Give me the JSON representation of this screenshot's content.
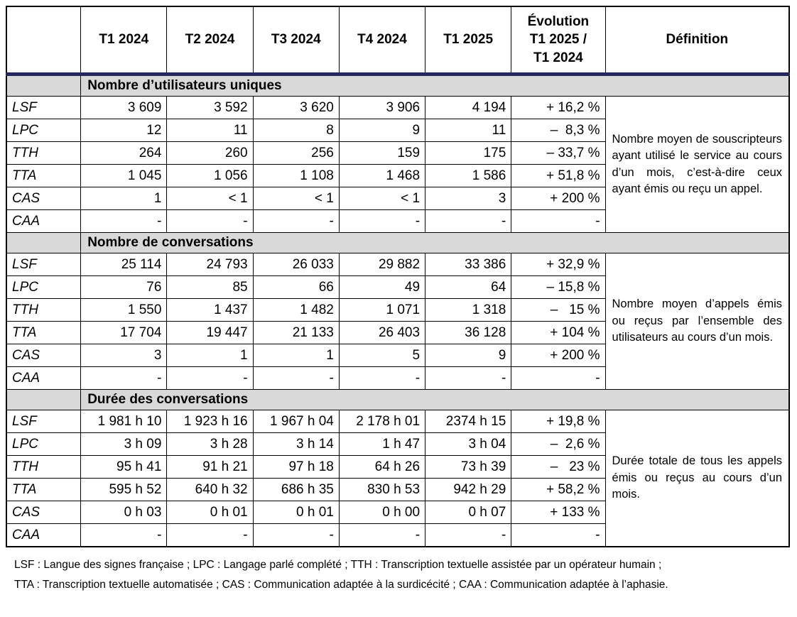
{
  "colors": {
    "separator_navy": "#26265e",
    "band_gray": "#d9d9d9",
    "border_black": "#000000"
  },
  "header": {
    "cols": [
      "",
      "T1 2024",
      "T2 2024",
      "T3 2024",
      "T4 2024",
      "T1 2025",
      "Évolution\nT1 2025 /\nT1 2024",
      "Définition"
    ]
  },
  "sections": [
    {
      "title": "Nombre d’utilisateurs uniques",
      "definition": "Nombre moyen de souscripteurs ayant utilisé le service au cours d’un mois, c’est-à-dire ceux ayant émis ou reçu un appel.",
      "rows": [
        {
          "label": "LSF",
          "values": [
            "3 609",
            "3 592",
            "3 620",
            "3 906",
            "4 194"
          ],
          "evolution": "+ 16,2 %"
        },
        {
          "label": "LPC",
          "values": [
            "12",
            "11",
            "8",
            "9",
            "11"
          ],
          "evolution": "–  8,3 %"
        },
        {
          "label": "TTH",
          "values": [
            "264",
            "260",
            "256",
            "159",
            "175"
          ],
          "evolution": "– 33,7 %"
        },
        {
          "label": "TTA",
          "values": [
            "1 045",
            "1 056",
            "1 108",
            "1 468",
            "1 586"
          ],
          "evolution": "+ 51,8 %"
        },
        {
          "label": "CAS",
          "values": [
            "1",
            "< 1",
            "< 1",
            "< 1",
            "3"
          ],
          "evolution": "+ 200 %"
        },
        {
          "label": "CAA",
          "values": [
            "-",
            "-",
            "-",
            "-",
            "-"
          ],
          "evolution": "-"
        }
      ]
    },
    {
      "title": "Nombre de conversations",
      "definition": "Nombre moyen d’appels émis ou reçus par l’ensemble des utilisateurs au cours d’un mois.",
      "rows": [
        {
          "label": "LSF",
          "values": [
            "25 114",
            "24 793",
            "26 033",
            "29 882",
            "33 386"
          ],
          "evolution": "+ 32,9 %"
        },
        {
          "label": "LPC",
          "values": [
            "76",
            "85",
            "66",
            "49",
            "64"
          ],
          "evolution": "– 15,8 %"
        },
        {
          "label": "TTH",
          "values": [
            "1 550",
            "1 437",
            "1 482",
            "1 071",
            "1 318"
          ],
          "evolution": "–   15 %"
        },
        {
          "label": "TTA",
          "values": [
            "17 704",
            "19 447",
            "21 133",
            "26 403",
            "36 128"
          ],
          "evolution": "+ 104 %"
        },
        {
          "label": "CAS",
          "values": [
            "3",
            "1",
            "1",
            "5",
            "9"
          ],
          "evolution": "+ 200 %"
        },
        {
          "label": "CAA",
          "values": [
            "-",
            "-",
            "-",
            "-",
            "-"
          ],
          "evolution": "-"
        }
      ]
    },
    {
      "title": "Durée des conversations",
      "definition": "Durée totale de tous les appels émis ou reçus au cours d’un mois.",
      "rows": [
        {
          "label": "LSF",
          "values": [
            "1 981 h 10",
            "1 923 h 16",
            "1 967 h 04",
            "2 178 h 01",
            "2374 h 15"
          ],
          "evolution": "+ 19,8 %"
        },
        {
          "label": "LPC",
          "values": [
            "3 h 09",
            "3 h 28",
            "3 h 14",
            "1 h 47",
            "3 h 04"
          ],
          "evolution": "–  2,6 %"
        },
        {
          "label": "TTH",
          "values": [
            "95 h 41",
            "91 h 21",
            "97 h 18",
            "64 h 26",
            "73 h 39"
          ],
          "evolution": "–   23 %"
        },
        {
          "label": "TTA",
          "values": [
            "595 h 52",
            "640 h 32",
            "686 h 35",
            "830 h 53",
            "942 h 29"
          ],
          "evolution": "+ 58,2 %"
        },
        {
          "label": "CAS",
          "values": [
            "0 h 03",
            "0 h 01",
            "0 h 01",
            "0 h 00",
            "0 h 07"
          ],
          "evolution": "+ 133 %"
        },
        {
          "label": "CAA",
          "values": [
            "-",
            "-",
            "-",
            "-",
            "-"
          ],
          "evolution": "-"
        }
      ]
    }
  ],
  "footnote": {
    "line1": "LSF : Langue des signes française ; LPC : Langage parlé complété ; TTH : Transcription textuelle assistée par un opérateur humain ;",
    "line2": "TTA : Transcription textuelle automatisée ; CAS : Communication adaptée à la surdicécité ; CAA : Communication adaptée à l’aphasie."
  }
}
